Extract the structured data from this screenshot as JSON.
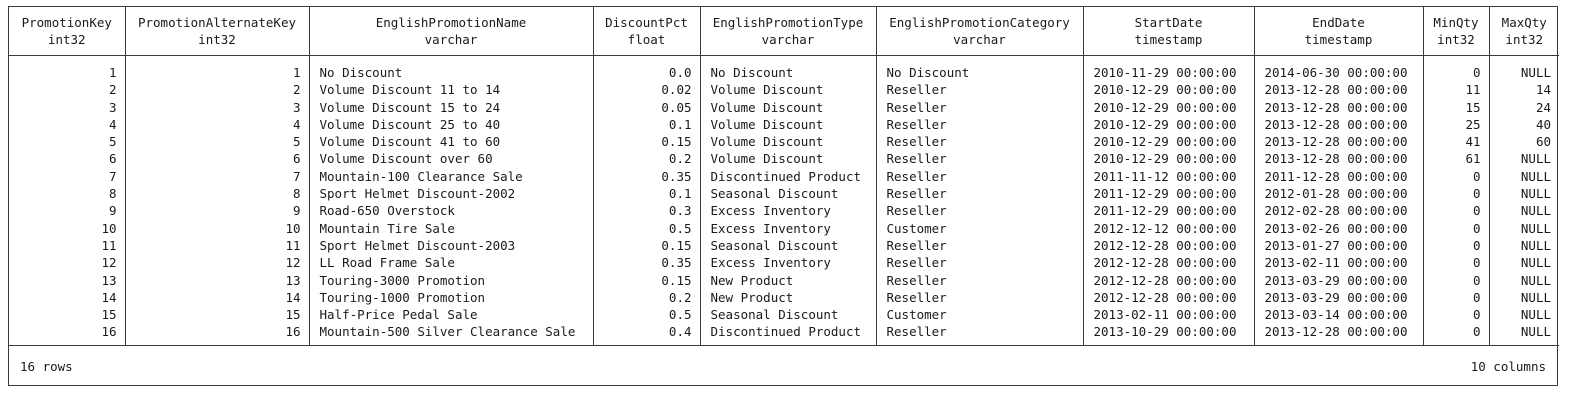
{
  "columns": [
    {
      "name": "PromotionKey",
      "type": "int32"
    },
    {
      "name": "PromotionAlternateKey",
      "type": "int32"
    },
    {
      "name": "EnglishPromotionName",
      "type": "varchar"
    },
    {
      "name": "DiscountPct",
      "type": "float"
    },
    {
      "name": "EnglishPromotionType",
      "type": "varchar"
    },
    {
      "name": "EnglishPromotionCategory",
      "type": "varchar"
    },
    {
      "name": "StartDate",
      "type": "timestamp"
    },
    {
      "name": "EndDate",
      "type": "timestamp"
    },
    {
      "name": "MinQty",
      "type": "int32"
    },
    {
      "name": "MaxQty",
      "type": "int32"
    }
  ],
  "rows": [
    [
      "1",
      "1",
      "No Discount",
      "0.0",
      "No Discount",
      "No Discount",
      "2010-11-29 00:00:00",
      "2014-06-30 00:00:00",
      "0",
      "NULL"
    ],
    [
      "2",
      "2",
      "Volume Discount 11 to 14",
      "0.02",
      "Volume Discount",
      "Reseller",
      "2010-12-29 00:00:00",
      "2013-12-28 00:00:00",
      "11",
      "14"
    ],
    [
      "3",
      "3",
      "Volume Discount 15 to 24",
      "0.05",
      "Volume Discount",
      "Reseller",
      "2010-12-29 00:00:00",
      "2013-12-28 00:00:00",
      "15",
      "24"
    ],
    [
      "4",
      "4",
      "Volume Discount 25 to 40",
      "0.1",
      "Volume Discount",
      "Reseller",
      "2010-12-29 00:00:00",
      "2013-12-28 00:00:00",
      "25",
      "40"
    ],
    [
      "5",
      "5",
      "Volume Discount 41 to 60",
      "0.15",
      "Volume Discount",
      "Reseller",
      "2010-12-29 00:00:00",
      "2013-12-28 00:00:00",
      "41",
      "60"
    ],
    [
      "6",
      "6",
      "Volume Discount over 60",
      "0.2",
      "Volume Discount",
      "Reseller",
      "2010-12-29 00:00:00",
      "2013-12-28 00:00:00",
      "61",
      "NULL"
    ],
    [
      "7",
      "7",
      "Mountain-100 Clearance Sale",
      "0.35",
      "Discontinued Product",
      "Reseller",
      "2011-11-12 00:00:00",
      "2011-12-28 00:00:00",
      "0",
      "NULL"
    ],
    [
      "8",
      "8",
      "Sport Helmet Discount-2002",
      "0.1",
      "Seasonal Discount",
      "Reseller",
      "2011-12-29 00:00:00",
      "2012-01-28 00:00:00",
      "0",
      "NULL"
    ],
    [
      "9",
      "9",
      "Road-650 Overstock",
      "0.3",
      "Excess Inventory",
      "Reseller",
      "2011-12-29 00:00:00",
      "2012-02-28 00:00:00",
      "0",
      "NULL"
    ],
    [
      "10",
      "10",
      "Mountain Tire Sale",
      "0.5",
      "Excess Inventory",
      "Customer",
      "2012-12-12 00:00:00",
      "2013-02-26 00:00:00",
      "0",
      "NULL"
    ],
    [
      "11",
      "11",
      "Sport Helmet Discount-2003",
      "0.15",
      "Seasonal Discount",
      "Reseller",
      "2012-12-28 00:00:00",
      "2013-01-27 00:00:00",
      "0",
      "NULL"
    ],
    [
      "12",
      "12",
      "LL Road Frame Sale",
      "0.35",
      "Excess Inventory",
      "Reseller",
      "2012-12-28 00:00:00",
      "2013-02-11 00:00:00",
      "0",
      "NULL"
    ],
    [
      "13",
      "13",
      "Touring-3000 Promotion",
      "0.15",
      "New Product",
      "Reseller",
      "2012-12-28 00:00:00",
      "2013-03-29 00:00:00",
      "0",
      "NULL"
    ],
    [
      "14",
      "14",
      "Touring-1000 Promotion",
      "0.2",
      "New Product",
      "Reseller",
      "2012-12-28 00:00:00",
      "2013-03-29 00:00:00",
      "0",
      "NULL"
    ],
    [
      "15",
      "15",
      "Half-Price Pedal Sale",
      "0.5",
      "Seasonal Discount",
      "Customer",
      "2013-02-11 00:00:00",
      "2013-03-14 00:00:00",
      "0",
      "NULL"
    ],
    [
      "16",
      "16",
      "Mountain-500 Silver Clearance Sale",
      "0.4",
      "Discontinued Product",
      "Reseller",
      "2013-10-29 00:00:00",
      "2013-12-28 00:00:00",
      "0",
      "NULL"
    ]
  ],
  "footer": {
    "row_count": "16 rows",
    "column_count": "10 columns"
  }
}
